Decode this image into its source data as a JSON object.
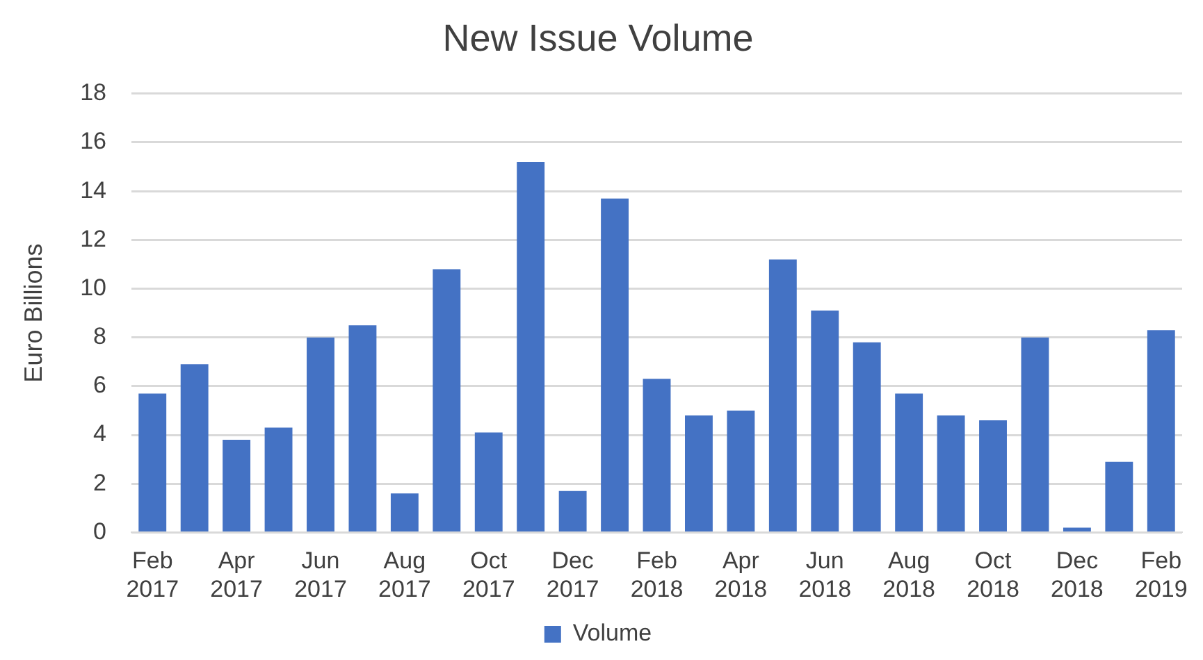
{
  "chart_data": {
    "type": "bar",
    "title": "New Issue Volume",
    "ylabel": "Euro Billions",
    "categories": [
      "Feb 2017",
      null,
      "Apr 2017",
      null,
      "Jun 2017",
      null,
      "Aug 2017",
      null,
      "Oct 2017",
      null,
      "Dec 2017",
      null,
      "Feb 2018",
      null,
      "Apr 2018",
      null,
      "Jun 2018",
      null,
      "Aug 2018",
      null,
      "Oct 2018",
      null,
      "Dec 2018",
      null,
      "Feb 2019"
    ],
    "series": [
      {
        "name": "Volume",
        "color": "#4472c4",
        "values": [
          5.7,
          6.9,
          3.8,
          4.3,
          8.0,
          8.5,
          1.6,
          10.8,
          4.1,
          15.2,
          1.7,
          13.7,
          6.3,
          4.8,
          5.0,
          11.2,
          9.1,
          7.8,
          5.7,
          4.8,
          4.6,
          8.0,
          0.2,
          2.9,
          8.3
        ]
      }
    ],
    "ylim": [
      0,
      18
    ],
    "yticks": [
      0,
      2,
      4,
      6,
      8,
      10,
      12,
      14,
      16,
      18
    ],
    "grid": "y",
    "legend": "bottom"
  }
}
